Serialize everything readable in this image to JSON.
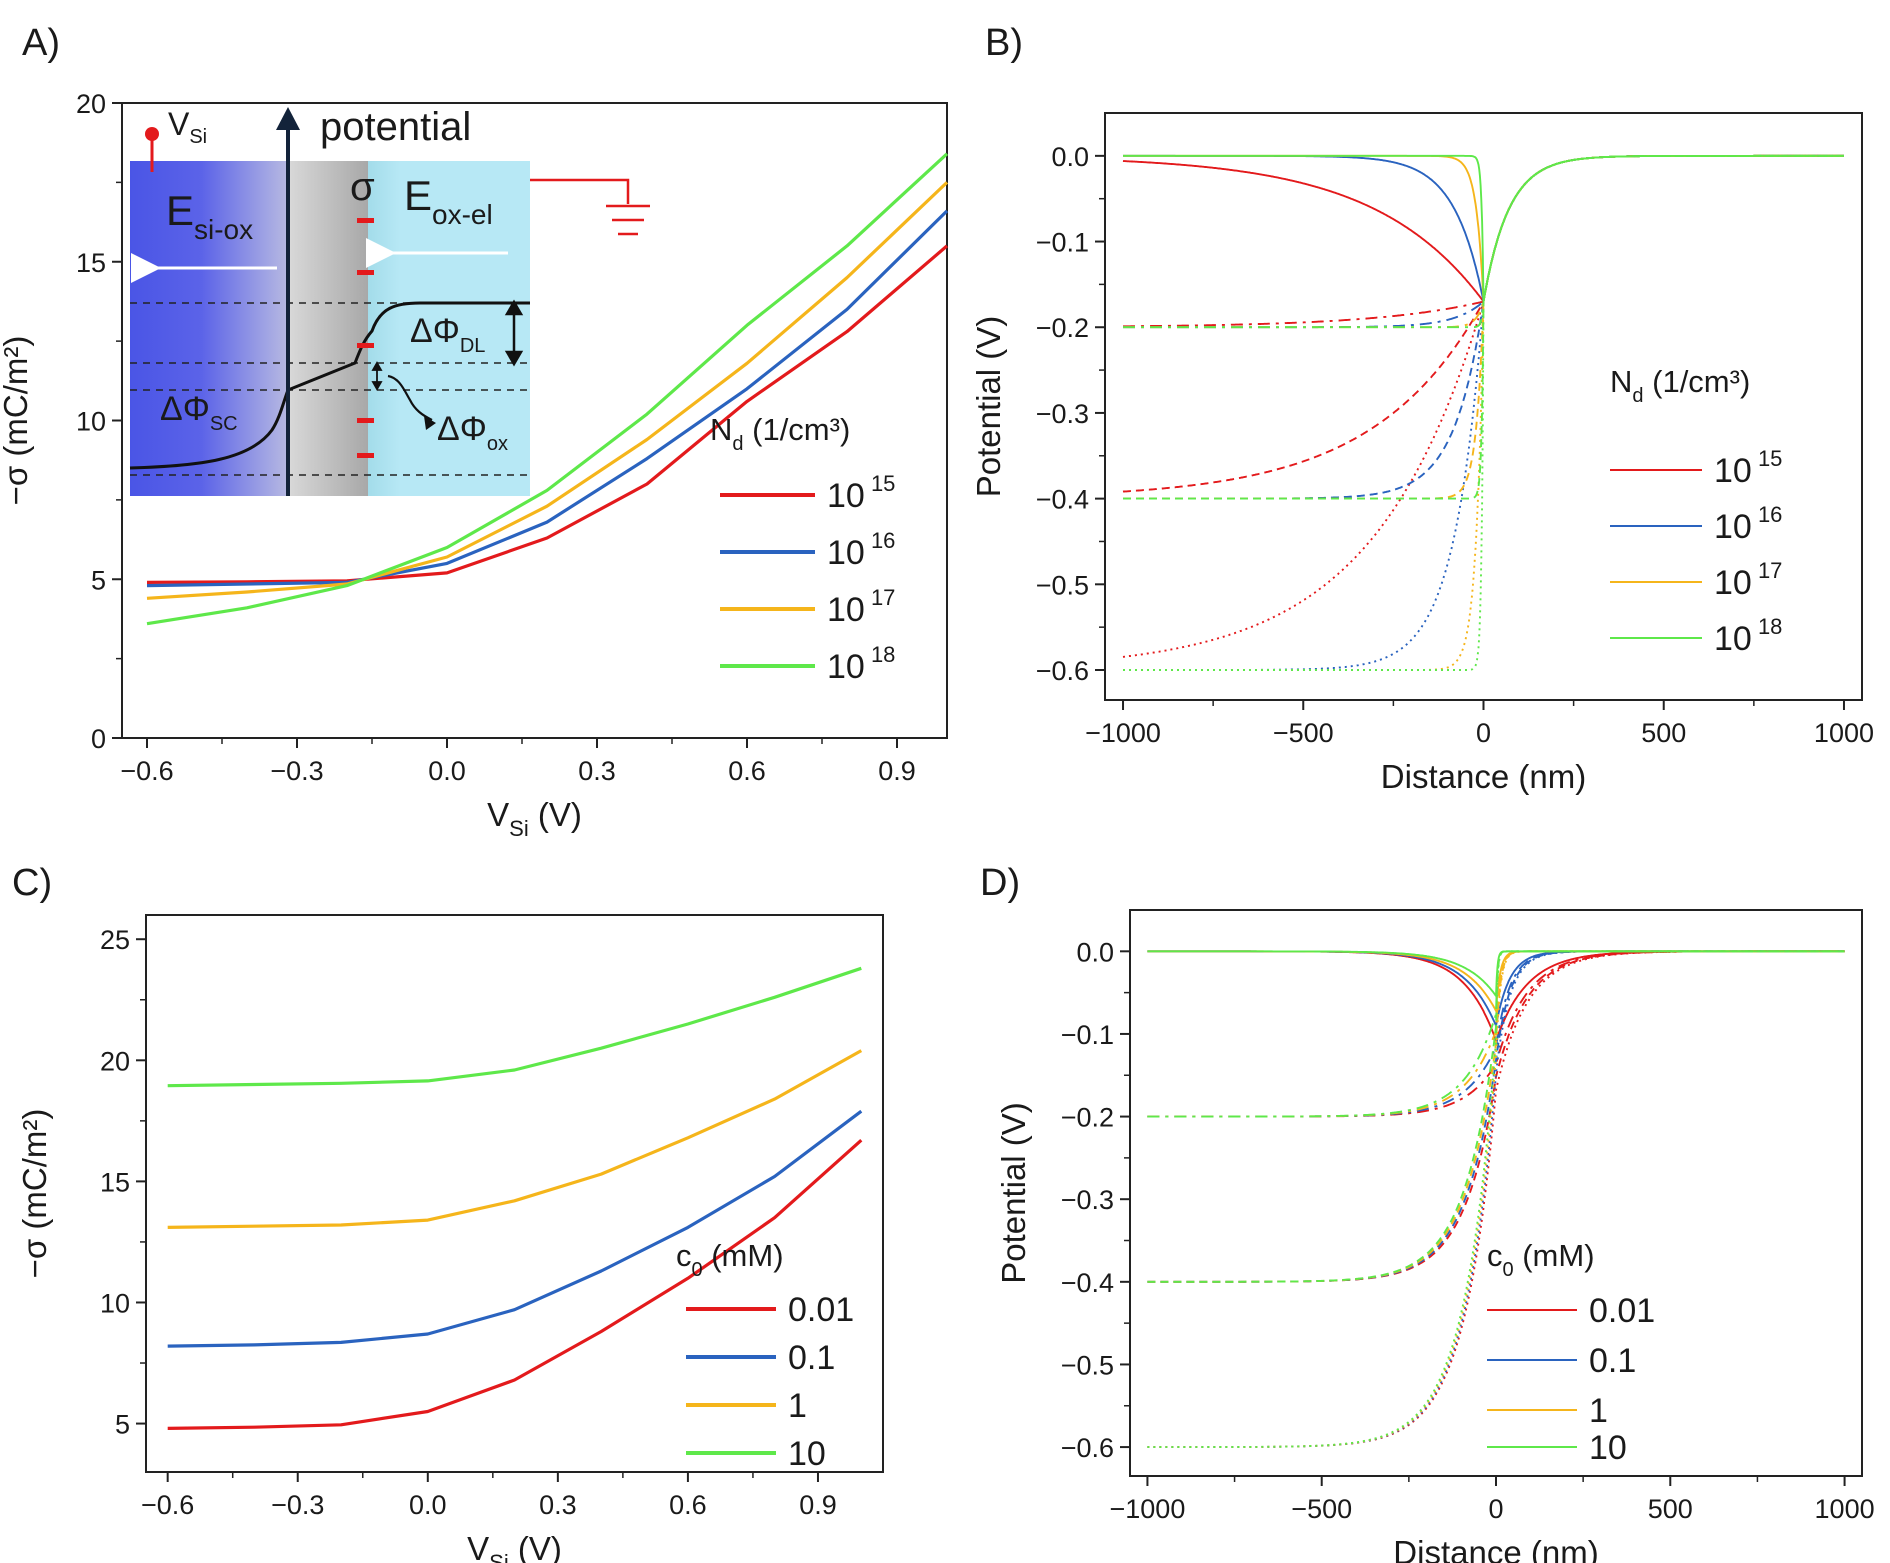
{
  "colors": {
    "red": "#e31a1c",
    "blue": "#2a63bf",
    "yellow": "#f5b51b",
    "green": "#5ee84a",
    "axis": "#222222"
  },
  "panels": {
    "A": {
      "letter": "A)"
    },
    "B": {
      "letter": "B)"
    },
    "C": {
      "letter": "C)"
    },
    "D": {
      "letter": "D)"
    }
  },
  "inset": {
    "vsi": "V",
    "vsi_sub": "Si",
    "potential": "potential",
    "sigma": "σ",
    "e_si_ox": "E",
    "e_si_ox_sub": "si-ox",
    "e_ox_el": "E",
    "e_ox_el_sub": "ox-el",
    "dphi_sc": "ΔΦ",
    "dphi_sc_sub": "SC",
    "dphi_dl": "ΔΦ",
    "dphi_dl_sub": "DL",
    "dphi_ox": "ΔΦ",
    "dphi_ox_sub": "ox"
  },
  "chart_data": [
    {
      "panel": "A",
      "type": "line",
      "xlabel": "V",
      "xlabel_sub": "Si",
      "xlabel_unit": "(V)",
      "ylabel": "−σ (mC/m²)",
      "xlim": [
        -0.65,
        1.0
      ],
      "ylim": [
        0,
        20
      ],
      "xticks": [
        "−0.6",
        "−0.3",
        "0.0",
        "0.3",
        "0.6",
        "0.9"
      ],
      "xtick_values": [
        -0.6,
        -0.3,
        0.0,
        0.3,
        0.6,
        0.9
      ],
      "yticks": [
        "0",
        "5",
        "10",
        "15",
        "20"
      ],
      "ytick_values": [
        0,
        5,
        10,
        15,
        20
      ],
      "legend_title": "N",
      "legend_title_sub": "d",
      "legend_title_unit": " (1/cm³)",
      "x": [
        -0.6,
        -0.4,
        -0.2,
        0.0,
        0.2,
        0.4,
        0.6,
        0.8,
        1.0
      ],
      "series": [
        {
          "name": "10",
          "exp": "15",
          "color": "red",
          "values": [
            4.9,
            4.92,
            4.95,
            5.2,
            6.3,
            8.0,
            10.6,
            12.8,
            15.5
          ]
        },
        {
          "name": "10",
          "exp": "16",
          "color": "blue",
          "values": [
            4.8,
            4.85,
            4.9,
            5.5,
            6.8,
            8.8,
            11.0,
            13.5,
            16.6
          ]
        },
        {
          "name": "10",
          "exp": "17",
          "color": "yellow",
          "values": [
            4.4,
            4.6,
            4.85,
            5.7,
            7.3,
            9.4,
            11.8,
            14.5,
            17.5
          ]
        },
        {
          "name": "10",
          "exp": "18",
          "color": "green",
          "values": [
            3.6,
            4.1,
            4.8,
            6.0,
            7.8,
            10.2,
            13.0,
            15.5,
            18.4
          ]
        }
      ]
    },
    {
      "panel": "B",
      "type": "line",
      "xlabel": "Distance (nm)",
      "ylabel": "Potential (V)",
      "xlim": [
        -1050,
        1050
      ],
      "ylim": [
        -0.635,
        0.05
      ],
      "xticks": [
        "−1000",
        "−500",
        "0",
        "500",
        "1000"
      ],
      "xtick_values": [
        -1000,
        -500,
        0,
        500,
        1000
      ],
      "yticks": [
        "0.0",
        "−0.1",
        "−0.2",
        "−0.3",
        "−0.4",
        "−0.5",
        "−0.6"
      ],
      "ytick_values": [
        0.0,
        -0.1,
        -0.2,
        -0.3,
        -0.4,
        -0.5,
        -0.6
      ],
      "legend_title": "N",
      "legend_title_sub": "d",
      "legend_title_unit": " (1/cm³)",
      "applied_potentials": [
        0.0,
        -0.2,
        -0.4,
        -0.6
      ],
      "series": [
        {
          "name": "10",
          "exp": "15",
          "color": "red",
          "decay_length_nm": 300
        },
        {
          "name": "10",
          "exp": "16",
          "color": "blue",
          "decay_length_nm": 80
        },
        {
          "name": "10",
          "exp": "17",
          "color": "yellow",
          "decay_length_nm": 20
        },
        {
          "name": "10",
          "exp": "18",
          "color": "green",
          "decay_length_nm": 5
        }
      ],
      "interface_potential": -0.17,
      "electrolyte_decay_nm": 70
    },
    {
      "panel": "C",
      "type": "line",
      "xlabel": "V",
      "xlabel_sub": "Si",
      "xlabel_unit": "(V)",
      "ylabel": "−σ (mC/m²)",
      "xlim": [
        -0.65,
        1.05
      ],
      "ylim": [
        3,
        26
      ],
      "xticks": [
        "−0.6",
        "−0.3",
        "0.0",
        "0.3",
        "0.6",
        "0.9"
      ],
      "xtick_values": [
        -0.6,
        -0.3,
        0.0,
        0.3,
        0.6,
        0.9
      ],
      "yticks": [
        "5",
        "10",
        "15",
        "20",
        "25"
      ],
      "ytick_values": [
        5,
        10,
        15,
        20,
        25
      ],
      "legend_title": "c",
      "legend_title_sub": "0",
      "legend_title_unit": " (mM)",
      "x": [
        -0.6,
        -0.4,
        -0.2,
        0.0,
        0.2,
        0.4,
        0.6,
        0.8,
        1.0
      ],
      "series": [
        {
          "name": "0.01",
          "color": "red",
          "values": [
            4.8,
            4.85,
            4.95,
            5.5,
            6.8,
            8.8,
            11.0,
            13.5,
            16.7
          ]
        },
        {
          "name": "0.1",
          "color": "blue",
          "values": [
            8.2,
            8.25,
            8.35,
            8.7,
            9.7,
            11.3,
            13.1,
            15.2,
            17.9
          ]
        },
        {
          "name": "1",
          "color": "yellow",
          "values": [
            13.1,
            13.15,
            13.2,
            13.4,
            14.2,
            15.3,
            16.8,
            18.4,
            20.4
          ]
        },
        {
          "name": "10",
          "color": "green",
          "values": [
            18.95,
            19.0,
            19.05,
            19.15,
            19.6,
            20.5,
            21.5,
            22.6,
            23.8
          ]
        }
      ]
    },
    {
      "panel": "D",
      "type": "line",
      "xlabel": "Distance (nm)",
      "ylabel": "Potential (V)",
      "xlim": [
        -1050,
        1050
      ],
      "ylim": [
        -0.635,
        0.05
      ],
      "xticks": [
        "−1000",
        "−500",
        "0",
        "500",
        "1000"
      ],
      "xtick_values": [
        -1000,
        -500,
        0,
        500,
        1000
      ],
      "yticks": [
        "0.0",
        "−0.1",
        "−0.2",
        "−0.3",
        "−0.4",
        "−0.5",
        "−0.6"
      ],
      "ytick_values": [
        0.0,
        -0.1,
        -0.2,
        -0.3,
        -0.4,
        -0.5,
        -0.6
      ],
      "legend_title": "c",
      "legend_title_sub": "0",
      "legend_title_unit": " (mM)",
      "applied_potentials": [
        0.0,
        -0.2,
        -0.4,
        -0.6
      ],
      "series": [
        {
          "name": "0.01",
          "color": "red",
          "electrolyte_decay_nm": 90,
          "interface_potential": -0.12
        },
        {
          "name": "0.1",
          "color": "blue",
          "electrolyte_decay_nm": 40,
          "interface_potential": -0.1
        },
        {
          "name": "1",
          "color": "yellow",
          "electrolyte_decay_nm": 12,
          "interface_potential": -0.08
        },
        {
          "name": "10",
          "color": "green",
          "electrolyte_decay_nm": 4,
          "interface_potential": -0.06
        }
      ],
      "silicon_decay_nm": 90
    }
  ]
}
